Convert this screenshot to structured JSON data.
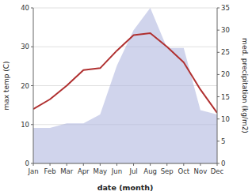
{
  "chart_data": {
    "type": "line",
    "xlabel": "date (month)",
    "ylabel": "max temp (C)",
    "y2label": "med. precipitation (kg/m2)",
    "categories": [
      "Jan",
      "Feb",
      "Mar",
      "Apr",
      "May",
      "Jun",
      "Jul",
      "Aug",
      "Sep",
      "Oct",
      "Nov",
      "Dec"
    ],
    "series": [
      {
        "type": "area",
        "axis": "y2",
        "color": "#b0b8e0",
        "values": [
          8,
          8,
          9,
          9,
          11,
          22,
          30,
          35,
          26,
          26,
          12,
          11
        ]
      },
      {
        "type": "line",
        "color": "#b03030",
        "values": [
          14,
          16.5,
          20,
          24,
          24.5,
          29,
          33,
          33.5,
          30,
          26,
          19,
          13
        ]
      }
    ],
    "ylim": [
      0,
      40
    ],
    "yticks": [
      0,
      10,
      20,
      30,
      40
    ],
    "y2lim": [
      0,
      35
    ],
    "y2ticks": [
      0,
      5,
      10,
      15,
      20,
      25,
      30,
      35
    ],
    "grid": true
  }
}
